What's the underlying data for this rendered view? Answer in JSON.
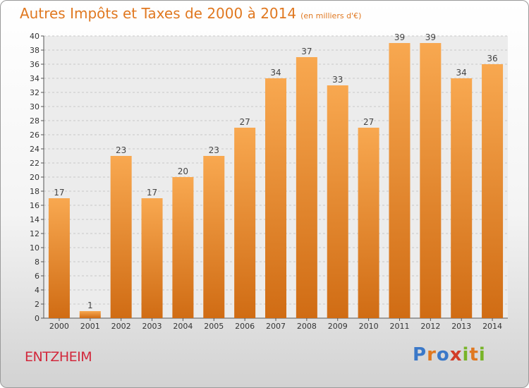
{
  "chart_data": {
    "type": "bar",
    "title": "Autres Impôts et Taxes de 2000 à 2014",
    "subtitle": "(en milliers d'€)",
    "categories": [
      "2000",
      "2001",
      "2002",
      "2003",
      "2004",
      "2005",
      "2006",
      "2007",
      "2008",
      "2009",
      "2010",
      "2011",
      "2012",
      "2013",
      "2014"
    ],
    "values": [
      17,
      1,
      23,
      17,
      20,
      23,
      27,
      34,
      37,
      33,
      27,
      39,
      39,
      34,
      36
    ],
    "ylim": [
      0,
      40
    ],
    "yticks": [
      0,
      2,
      4,
      6,
      8,
      10,
      12,
      14,
      16,
      18,
      20,
      22,
      24,
      26,
      28,
      30,
      32,
      34,
      36,
      38,
      40
    ],
    "grid": true,
    "bar_color": "#f0943c"
  },
  "commune": "ENTZHEIM",
  "logo": {
    "text": "Proxiti"
  }
}
